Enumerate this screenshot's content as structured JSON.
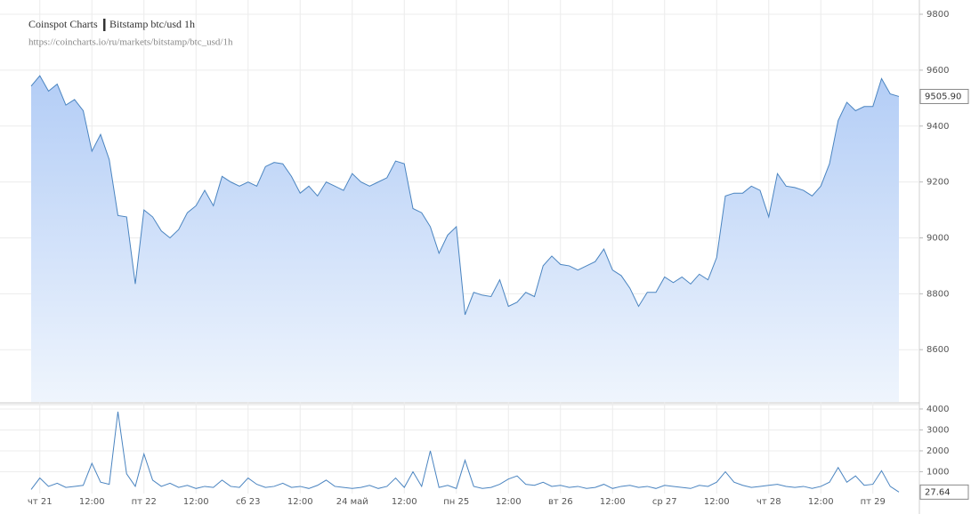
{
  "chart_data": [
    {
      "type": "area",
      "title": "Coinspot Charts",
      "subtitle": "Bitstamp  btc/usd  1h",
      "source": "https://coincharts.io/ru/markets/bitstamp/btc_usd/1h",
      "color": "#4a84c0",
      "categories": [
        null,
        "чт 21",
        null,
        null,
        null,
        null,
        null,
        "12:00",
        null,
        null,
        null,
        null,
        null,
        "пт 22",
        null,
        null,
        null,
        null,
        null,
        "12:00",
        null,
        null,
        null,
        null,
        null,
        "сб 23",
        null,
        null,
        null,
        null,
        null,
        "12:00",
        null,
        null,
        null,
        null,
        null,
        "24 май",
        null,
        null,
        null,
        null,
        null,
        "12:00",
        null,
        null,
        null,
        null,
        null,
        "пн 25",
        null,
        null,
        null,
        null,
        null,
        "12:00",
        null,
        null,
        null,
        null,
        null,
        "вт 26",
        null,
        null,
        null,
        null,
        null,
        "12:00",
        null,
        null,
        null,
        null,
        null,
        "ср 27",
        null,
        null,
        null,
        null,
        null,
        "12:00",
        null,
        null,
        null,
        null,
        null,
        "чт 28",
        null,
        null,
        null,
        null,
        null,
        "12:00",
        null,
        null,
        null,
        null,
        null,
        "пт 29",
        null,
        null,
        null
      ],
      "values": [
        9543,
        9580,
        9525,
        9550,
        9475,
        9495,
        9455,
        9310,
        9370,
        9280,
        9080,
        9075,
        8835,
        9100,
        9075,
        9025,
        9000,
        9030,
        9090,
        9115,
        9170,
        9115,
        9220,
        9200,
        9185,
        9200,
        9185,
        9255,
        9270,
        9265,
        9220,
        9160,
        9185,
        9150,
        9200,
        9185,
        9170,
        9230,
        9200,
        9185,
        9200,
        9215,
        9275,
        9265,
        9105,
        9090,
        9040,
        8945,
        9010,
        9040,
        8725,
        8805,
        8795,
        8790,
        8850,
        8755,
        8770,
        8805,
        8790,
        8900,
        8935,
        8905,
        8900,
        8885,
        8900,
        8915,
        8960,
        8885,
        8865,
        8820,
        8755,
        8805,
        8805,
        8860,
        8840,
        8860,
        8835,
        8870,
        8850,
        8930,
        9150,
        9160,
        9160,
        9185,
        9170,
        9075,
        9230,
        9185,
        9180,
        9170,
        9150,
        9185,
        9265,
        9420,
        9485,
        9455,
        9470,
        9470,
        9570,
        9515,
        9506
      ],
      "ylim": [
        8413,
        9851
      ],
      "yticks": [
        8600,
        8800,
        9000,
        9200,
        9400,
        9600,
        9800
      ],
      "last_value": {
        "value": 9505.9,
        "label": "9505.90"
      },
      "grid": true
    },
    {
      "type": "line",
      "color": "#4a84c0",
      "values": [
        150,
        700,
        300,
        450,
        250,
        300,
        350,
        1400,
        500,
        400,
        3870,
        900,
        300,
        1850,
        600,
        300,
        450,
        250,
        350,
        200,
        300,
        250,
        600,
        300,
        250,
        700,
        400,
        250,
        300,
        450,
        250,
        300,
        200,
        350,
        600,
        300,
        250,
        200,
        250,
        350,
        200,
        300,
        700,
        250,
        1000,
        300,
        2000,
        250,
        350,
        200,
        1550,
        300,
        200,
        250,
        400,
        650,
        800,
        400,
        350,
        500,
        300,
        350,
        250,
        300,
        200,
        250,
        400,
        200,
        300,
        350,
        250,
        300,
        200,
        350,
        300,
        250,
        200,
        350,
        300,
        500,
        1000,
        500,
        350,
        250,
        300,
        350,
        400,
        300,
        250,
        300,
        200,
        300,
        500,
        1200,
        500,
        800,
        350,
        400,
        1050,
        300,
        28
      ],
      "ylim": [
        0,
        4210
      ],
      "yticks": [
        1000,
        2000,
        3000,
        4000
      ],
      "last_value": 27.64,
      "grid": true
    }
  ]
}
